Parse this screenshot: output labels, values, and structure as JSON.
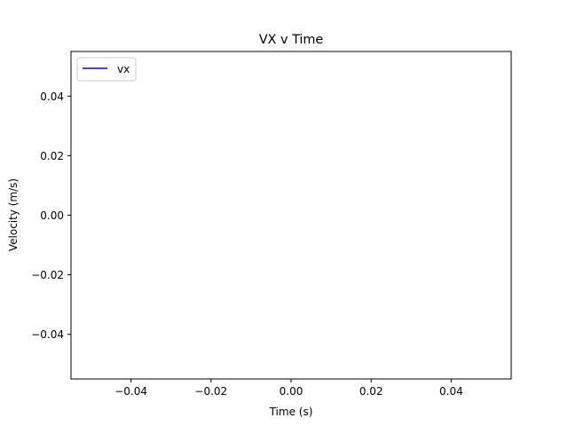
{
  "chart_data": {
    "type": "line",
    "title": "VX v Time",
    "xlabel": "Time (s)",
    "ylabel": "Velocity (m/s)",
    "xlim": [
      -0.055,
      0.055
    ],
    "ylim": [
      -0.055,
      0.055
    ],
    "x_ticks": [
      -0.04,
      -0.02,
      0.0,
      0.02,
      0.04
    ],
    "x_tick_labels": [
      "−0.04",
      "−0.02",
      "0.00",
      "0.02",
      "0.04"
    ],
    "y_ticks": [
      0.04,
      0.02,
      0.0,
      -0.02,
      -0.04
    ],
    "y_tick_labels": [
      "0.04",
      "0.02",
      "0.00",
      "−0.02",
      "−0.04"
    ],
    "grid": false,
    "legend_position": "upper-left",
    "series": [
      {
        "name": "vx",
        "color": "#0000ff",
        "x": [],
        "y": []
      }
    ]
  }
}
